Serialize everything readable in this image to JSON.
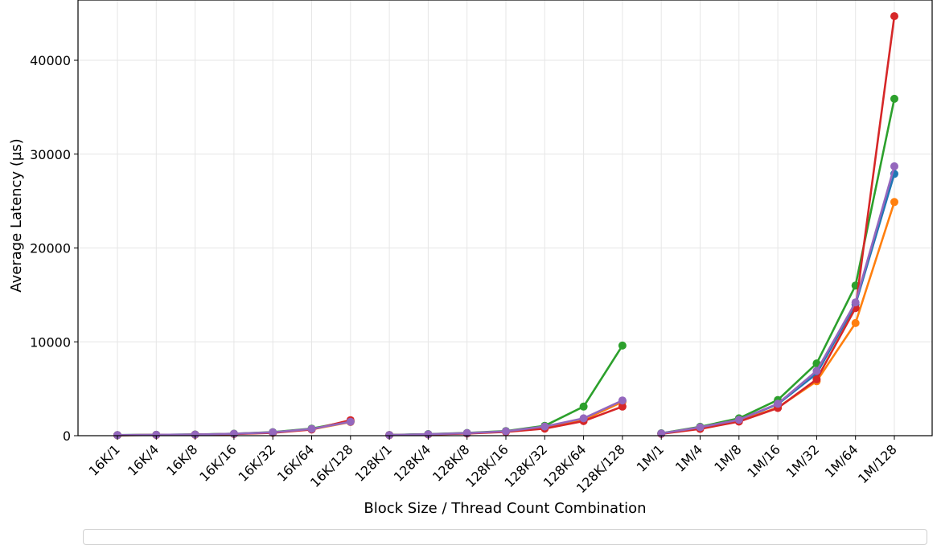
{
  "chart_data": {
    "type": "line",
    "title": "",
    "xlabel": "Block Size / Thread Count Combination",
    "ylabel": "Average Latency (µs)",
    "ylim": [
      0,
      46000
    ],
    "yticks": [
      0,
      10000,
      20000,
      30000,
      40000
    ],
    "ytick_labels": [
      "0",
      "10000",
      "20000",
      "30000",
      "40000"
    ],
    "grid": true,
    "legend": "bottom",
    "categories": [
      "16K/1",
      "16K/4",
      "16K/8",
      "16K/16",
      "16K/32",
      "16K/64",
      "16K/128",
      "128K/1",
      "128K/4",
      "128K/8",
      "128K/16",
      "128K/32",
      "128K/64",
      "128K/128",
      "1M/1",
      "1M/4",
      "1M/8",
      "1M/16",
      "1M/32",
      "1M/64",
      "1M/128"
    ],
    "groups": [
      [
        0,
        6
      ],
      [
        7,
        13
      ],
      [
        14,
        20
      ]
    ],
    "series": [
      {
        "color": "#1f77b4",
        "values": [
          60,
          90,
          120,
          200,
          350,
          700,
          1500,
          70,
          150,
          260,
          450,
          950,
          1800,
          3700,
          230,
          880,
          1680,
          3350,
          6600,
          14000,
          27900
        ]
      },
      {
        "color": "#ff7f0e",
        "values": [
          55,
          85,
          115,
          190,
          330,
          680,
          1450,
          65,
          140,
          250,
          430,
          900,
          1700,
          3600,
          210,
          800,
          1560,
          3000,
          5800,
          12000,
          24900
        ]
      },
      {
        "color": "#2ca02c",
        "values": [
          58,
          95,
          125,
          210,
          380,
          750,
          1550,
          75,
          170,
          290,
          500,
          1050,
          3100,
          9600,
          260,
          950,
          1850,
          3800,
          7700,
          16000,
          35900
        ]
      },
      {
        "color": "#d62728",
        "values": [
          50,
          80,
          110,
          180,
          300,
          650,
          1650,
          60,
          130,
          230,
          400,
          750,
          1550,
          3100,
          200,
          720,
          1500,
          2950,
          6000,
          13600,
          44700
        ]
      },
      {
        "color": "#9467bd",
        "values": [
          62,
          92,
          122,
          205,
          360,
          720,
          1480,
          72,
          155,
          270,
          470,
          980,
          1850,
          3750,
          240,
          900,
          1700,
          3400,
          6900,
          14200,
          28700
        ]
      }
    ]
  }
}
